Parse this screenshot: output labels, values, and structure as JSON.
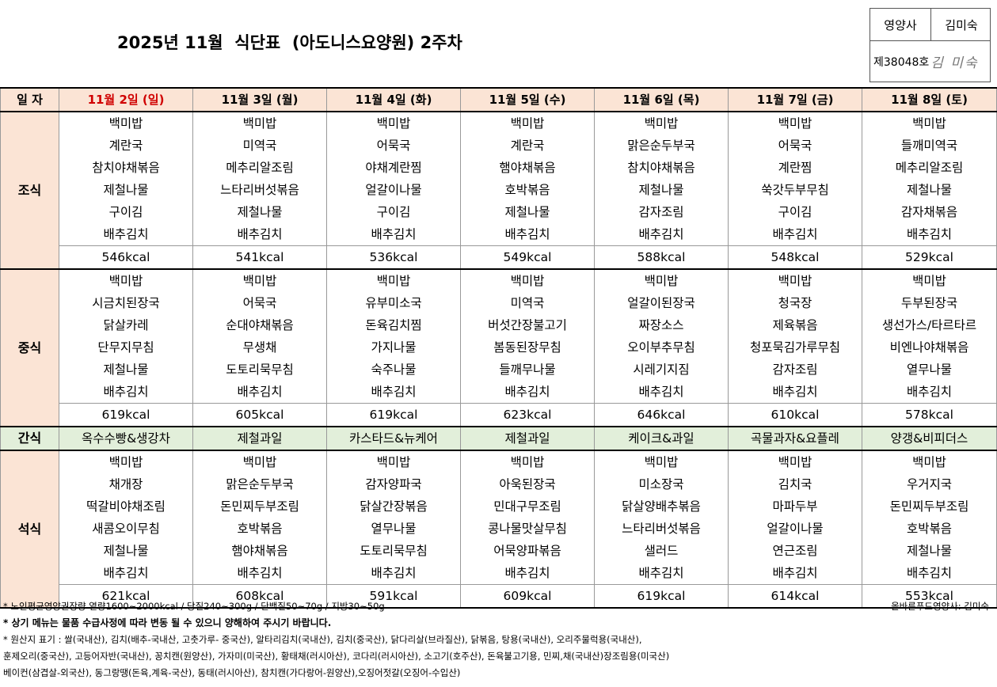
{
  "title": "2025년 11월  식단표  (아도니스요양원) 2주차",
  "sign": {
    "role": "영양사",
    "name": "김미숙",
    "license": "제38048호",
    "signature": "김 미숙"
  },
  "header": {
    "label": "일 자",
    "days": [
      "11월 2일 (일)",
      "11월 3일 (월)",
      "11월 4일 (화)",
      "11월 5일 (수)",
      "11월 6일 (목)",
      "11월 7일 (금)",
      "11월 8일 (토)"
    ]
  },
  "breakfast": {
    "label": "조식",
    "rows": [
      [
        "백미밥",
        "백미밥",
        "백미밥",
        "백미밥",
        "백미밥",
        "백미밥",
        "백미밥"
      ],
      [
        "계란국",
        "미역국",
        "어묵국",
        "계란국",
        "맑은순두부국",
        "어묵국",
        "들깨미역국"
      ],
      [
        "참치야채볶음",
        "메추리알조림",
        "야채계란찜",
        "햄야채볶음",
        "참치야채볶음",
        "계란찜",
        "메추리알조림"
      ],
      [
        "제철나물",
        "느타리버섯볶음",
        "얼갈이나물",
        "호박볶음",
        "제철나물",
        "쑥갓두부무침",
        "제철나물"
      ],
      [
        "구이김",
        "제철나물",
        "구이김",
        "제철나물",
        "감자조림",
        "구이김",
        "감자채볶음"
      ],
      [
        "배추김치",
        "배추김치",
        "배추김치",
        "배추김치",
        "배추김치",
        "배추김치",
        "배추김치"
      ]
    ],
    "kcal": [
      "546kcal",
      "541kcal",
      "536kcal",
      "549kcal",
      "588kcal",
      "548kcal",
      "529kcal"
    ]
  },
  "lunch": {
    "label": "중식",
    "rows": [
      [
        "백미밥",
        "백미밥",
        "백미밥",
        "백미밥",
        "백미밥",
        "백미밥",
        "백미밥"
      ],
      [
        "시금치된장국",
        "어묵국",
        "유부미소국",
        "미역국",
        "얼갈이된장국",
        "청국장",
        "두부된장국"
      ],
      [
        "닭살카레",
        "순대야채볶음",
        "돈육김치찜",
        "버섯간장불고기",
        "짜장소스",
        "제육볶음",
        "생선가스/타르타르"
      ],
      [
        "단무지무침",
        "무생채",
        "가지나물",
        "봄동된장무침",
        "오이부추무침",
        "청포묵김가루무침",
        "비엔나야채볶음"
      ],
      [
        "제철나물",
        "도토리묵무침",
        "숙주나물",
        "들깨무나물",
        "시레기지짐",
        "감자조림",
        "열무나물"
      ],
      [
        "배추김치",
        "배추김치",
        "배추김치",
        "배추김치",
        "배추김치",
        "배추김치",
        "배추김치"
      ]
    ],
    "kcal": [
      "619kcal",
      "605kcal",
      "619kcal",
      "623kcal",
      "646kcal",
      "610kcal",
      "578kcal"
    ]
  },
  "snack": {
    "label": "간식",
    "items": [
      "옥수수빵&생강차",
      "제철과일",
      "카스타드&뉴케어",
      "제철과일",
      "케이크&과일",
      "곡물과자&요플레",
      "양갱&비피더스"
    ]
  },
  "dinner": {
    "label": "석식",
    "rows": [
      [
        "백미밥",
        "백미밥",
        "백미밥",
        "백미밥",
        "백미밥",
        "백미밥",
        "백미밥"
      ],
      [
        "채개장",
        "맑은순두부국",
        "감자양파국",
        "아욱된장국",
        "미소장국",
        "김치국",
        "우거지국"
      ],
      [
        "떡갈비야채조림",
        "돈민찌두부조림",
        "닭살간장볶음",
        "민대구무조림",
        "닭살양배추볶음",
        "마파두부",
        "돈민찌두부조림"
      ],
      [
        "새콤오이무침",
        "호박볶음",
        "열무나물",
        "콩나물맛살무침",
        "느타리버섯볶음",
        "얼갈이나물",
        "호박볶음"
      ],
      [
        "제철나물",
        "햄야채볶음",
        "도토리묵무침",
        "어묵양파볶음",
        "샐러드",
        "연근조림",
        "제철나물"
      ],
      [
        "배추김치",
        "배추김치",
        "배추김치",
        "배추김치",
        "배추김치",
        "배추김치",
        "배추김치"
      ]
    ],
    "kcal": [
      "621kcal",
      "608kcal",
      "591kcal",
      "609kcal",
      "619kcal",
      "614kcal",
      "553kcal"
    ]
  },
  "notes": {
    "line1": "* 노인평균영양권장량 열량1600~2000kcal / 당질240~300g / 단백질50~70g / 지방30~50g",
    "line2": "* 상기 메뉴는 물품 수급사정에 따라 변동 될 수 있으니 양해하여 주시기 바랍니다.",
    "line3": "* 원산지 표기 : 쌀(국내산), 김치(배추-국내산, 고춧가루- 중국산), 알타리김치(국내산), 김치(중국산), 닭다리살(브라질산), 닭볶음, 탕용(국내산), 오리주물럭용(국내산),",
    "line4": "   훈제오리(중국산), 고등어자반(국내산), 꽁치캔(원양산), 가자미(미국산), 황태채(러시아산), 코다리(러시아산), 소고기(호주산), 돈육불고기용, 민찌,채(국내산)장조림용(미국산)",
    "line5": "   베이컨(삼겹살-외국산), 동그랑땡(돈육,계육-국산), 동태(러시아산), 참치캔(가다랑어-원양산),오징어젓갈(오징어-수입산)",
    "nutritionist": "올바른푸드영양사: 김미숙"
  }
}
